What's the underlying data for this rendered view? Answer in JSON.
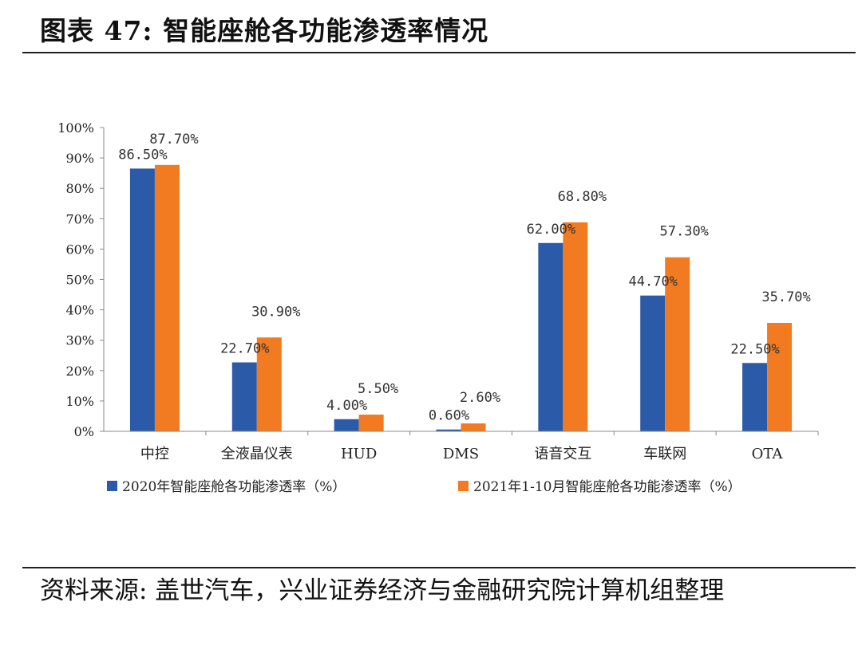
{
  "header": {
    "title": "图表 47: 智能座舱各功能渗透率情况"
  },
  "footer": {
    "source": "资料来源: 盖世汽车，兴业证券经济与金融研究院计算机组整理"
  },
  "colors": {
    "series1": "#2B5AA8",
    "series2": "#F27A21",
    "axis": "#888888"
  },
  "chart_data": {
    "type": "bar",
    "categories": [
      "中控",
      "全液晶仪表",
      "HUD",
      "DMS",
      "语音交互",
      "车联网",
      "OTA"
    ],
    "series": [
      {
        "name": "2020年智能座舱各功能渗透率（%）",
        "values": [
          86.5,
          22.7,
          4.0,
          0.6,
          62.0,
          44.7,
          22.5
        ],
        "labels": [
          "86.50%",
          "22.70%",
          "4.00%",
          "0.60%",
          "62.00%",
          "44.70%",
          "22.50%"
        ]
      },
      {
        "name": "2021年1-10月智能座舱各功能渗透率（%）",
        "values": [
          87.7,
          30.9,
          5.5,
          2.6,
          68.8,
          57.3,
          35.7
        ],
        "labels": [
          "87.70%",
          "30.90%",
          "5.50%",
          "2.60%",
          "68.80%",
          "57.30%",
          "35.70%"
        ]
      }
    ],
    "yticks": [
      "0%",
      "10%",
      "20%",
      "30%",
      "40%",
      "50%",
      "60%",
      "70%",
      "80%",
      "90%",
      "100%"
    ],
    "ylim": [
      0,
      100
    ],
    "grid": false,
    "legend": "bottom"
  }
}
